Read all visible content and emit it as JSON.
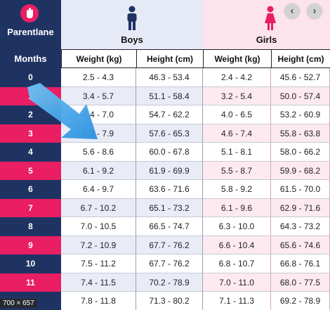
{
  "logo": {
    "text": "Parentlane"
  },
  "header": {
    "months_label": "Months",
    "boys_title": "Boys",
    "girls_title": "Girls"
  },
  "columns": {
    "boys_weight": "Weight (kg)",
    "boys_height": "Height (cm)",
    "girls_weight": "Weight (kg)",
    "girls_height": "Height (cm)"
  },
  "rows": [
    {
      "month": "0",
      "bw": "2.5 - 4.3",
      "bh": "46.3 - 53.4",
      "gw": "2.4 - 4.2",
      "gh": "45.6 - 52.7"
    },
    {
      "month": "1",
      "bw": "3.4 - 5.7",
      "bh": "51.1 - 58.4",
      "gw": "3.2 - 5.4",
      "gh": "50.0 - 57.4"
    },
    {
      "month": "2",
      "bw": "4.4 - 7.0",
      "bh": "54.7 - 62.2",
      "gw": "4.0 - 6.5",
      "gh": "53.2 - 60.9"
    },
    {
      "month": "3",
      "bw": "5.1 - 7.9",
      "bh": "57.6 - 65.3",
      "gw": "4.6 - 7.4",
      "gh": "55.8 - 63.8"
    },
    {
      "month": "4",
      "bw": "5.6 - 8.6",
      "bh": "60.0 - 67.8",
      "gw": "5.1 - 8.1",
      "gh": "58.0 - 66.2"
    },
    {
      "month": "5",
      "bw": "6.1 - 9.2",
      "bh": "61.9 - 69.9",
      "gw": "5.5 - 8.7",
      "gh": "59.9 - 68.2"
    },
    {
      "month": "6",
      "bw": "6.4 - 9.7",
      "bh": "63.6 - 71.6",
      "gw": "5.8 - 9.2",
      "gh": "61.5 - 70.0"
    },
    {
      "month": "7",
      "bw": "6.7 - 10.2",
      "bh": "65.1 - 73.2",
      "gw": "6.1 - 9.6",
      "gh": "62.9 - 71.6"
    },
    {
      "month": "8",
      "bw": "7.0 - 10.5",
      "bh": "66.5 - 74.7",
      "gw": "6.3 - 10.0",
      "gh": "64.3 - 73.2"
    },
    {
      "month": "9",
      "bw": "7.2 - 10.9",
      "bh": "67.7 - 76.2",
      "gw": "6.6 - 10.4",
      "gh": "65.6 - 74.6"
    },
    {
      "month": "10",
      "bw": "7.5 - 11.2",
      "bh": "67.7 - 76.2",
      "gw": "6.8 - 10.7",
      "gh": "66.8 - 76.1"
    },
    {
      "month": "11",
      "bw": "7.4 - 11.5",
      "bh": "70.2 - 78.9",
      "gw": "7.0 - 11.0",
      "gh": "68.0 - 77.5"
    },
    {
      "month": "",
      "bw": "7.8 - 11.8",
      "bh": "71.3 - 80.2",
      "gw": "7.1 - 11.3",
      "gh": "69.2 - 78.9"
    }
  ],
  "overlay": {
    "dimensions": "700 × 657",
    "prev_icon": "‹",
    "next_icon": "›"
  },
  "colors": {
    "navy": "#1f3363",
    "pink": "#e91e63",
    "boys_bg": "#e6e9f6",
    "girls_bg": "#fde4ec",
    "arrow": "#3aa3e8"
  },
  "icons": [
    "parentlane-logo-icon",
    "boy-icon",
    "girl-icon",
    "arrow-icon",
    "chevron-left-icon",
    "chevron-right-icon"
  ]
}
